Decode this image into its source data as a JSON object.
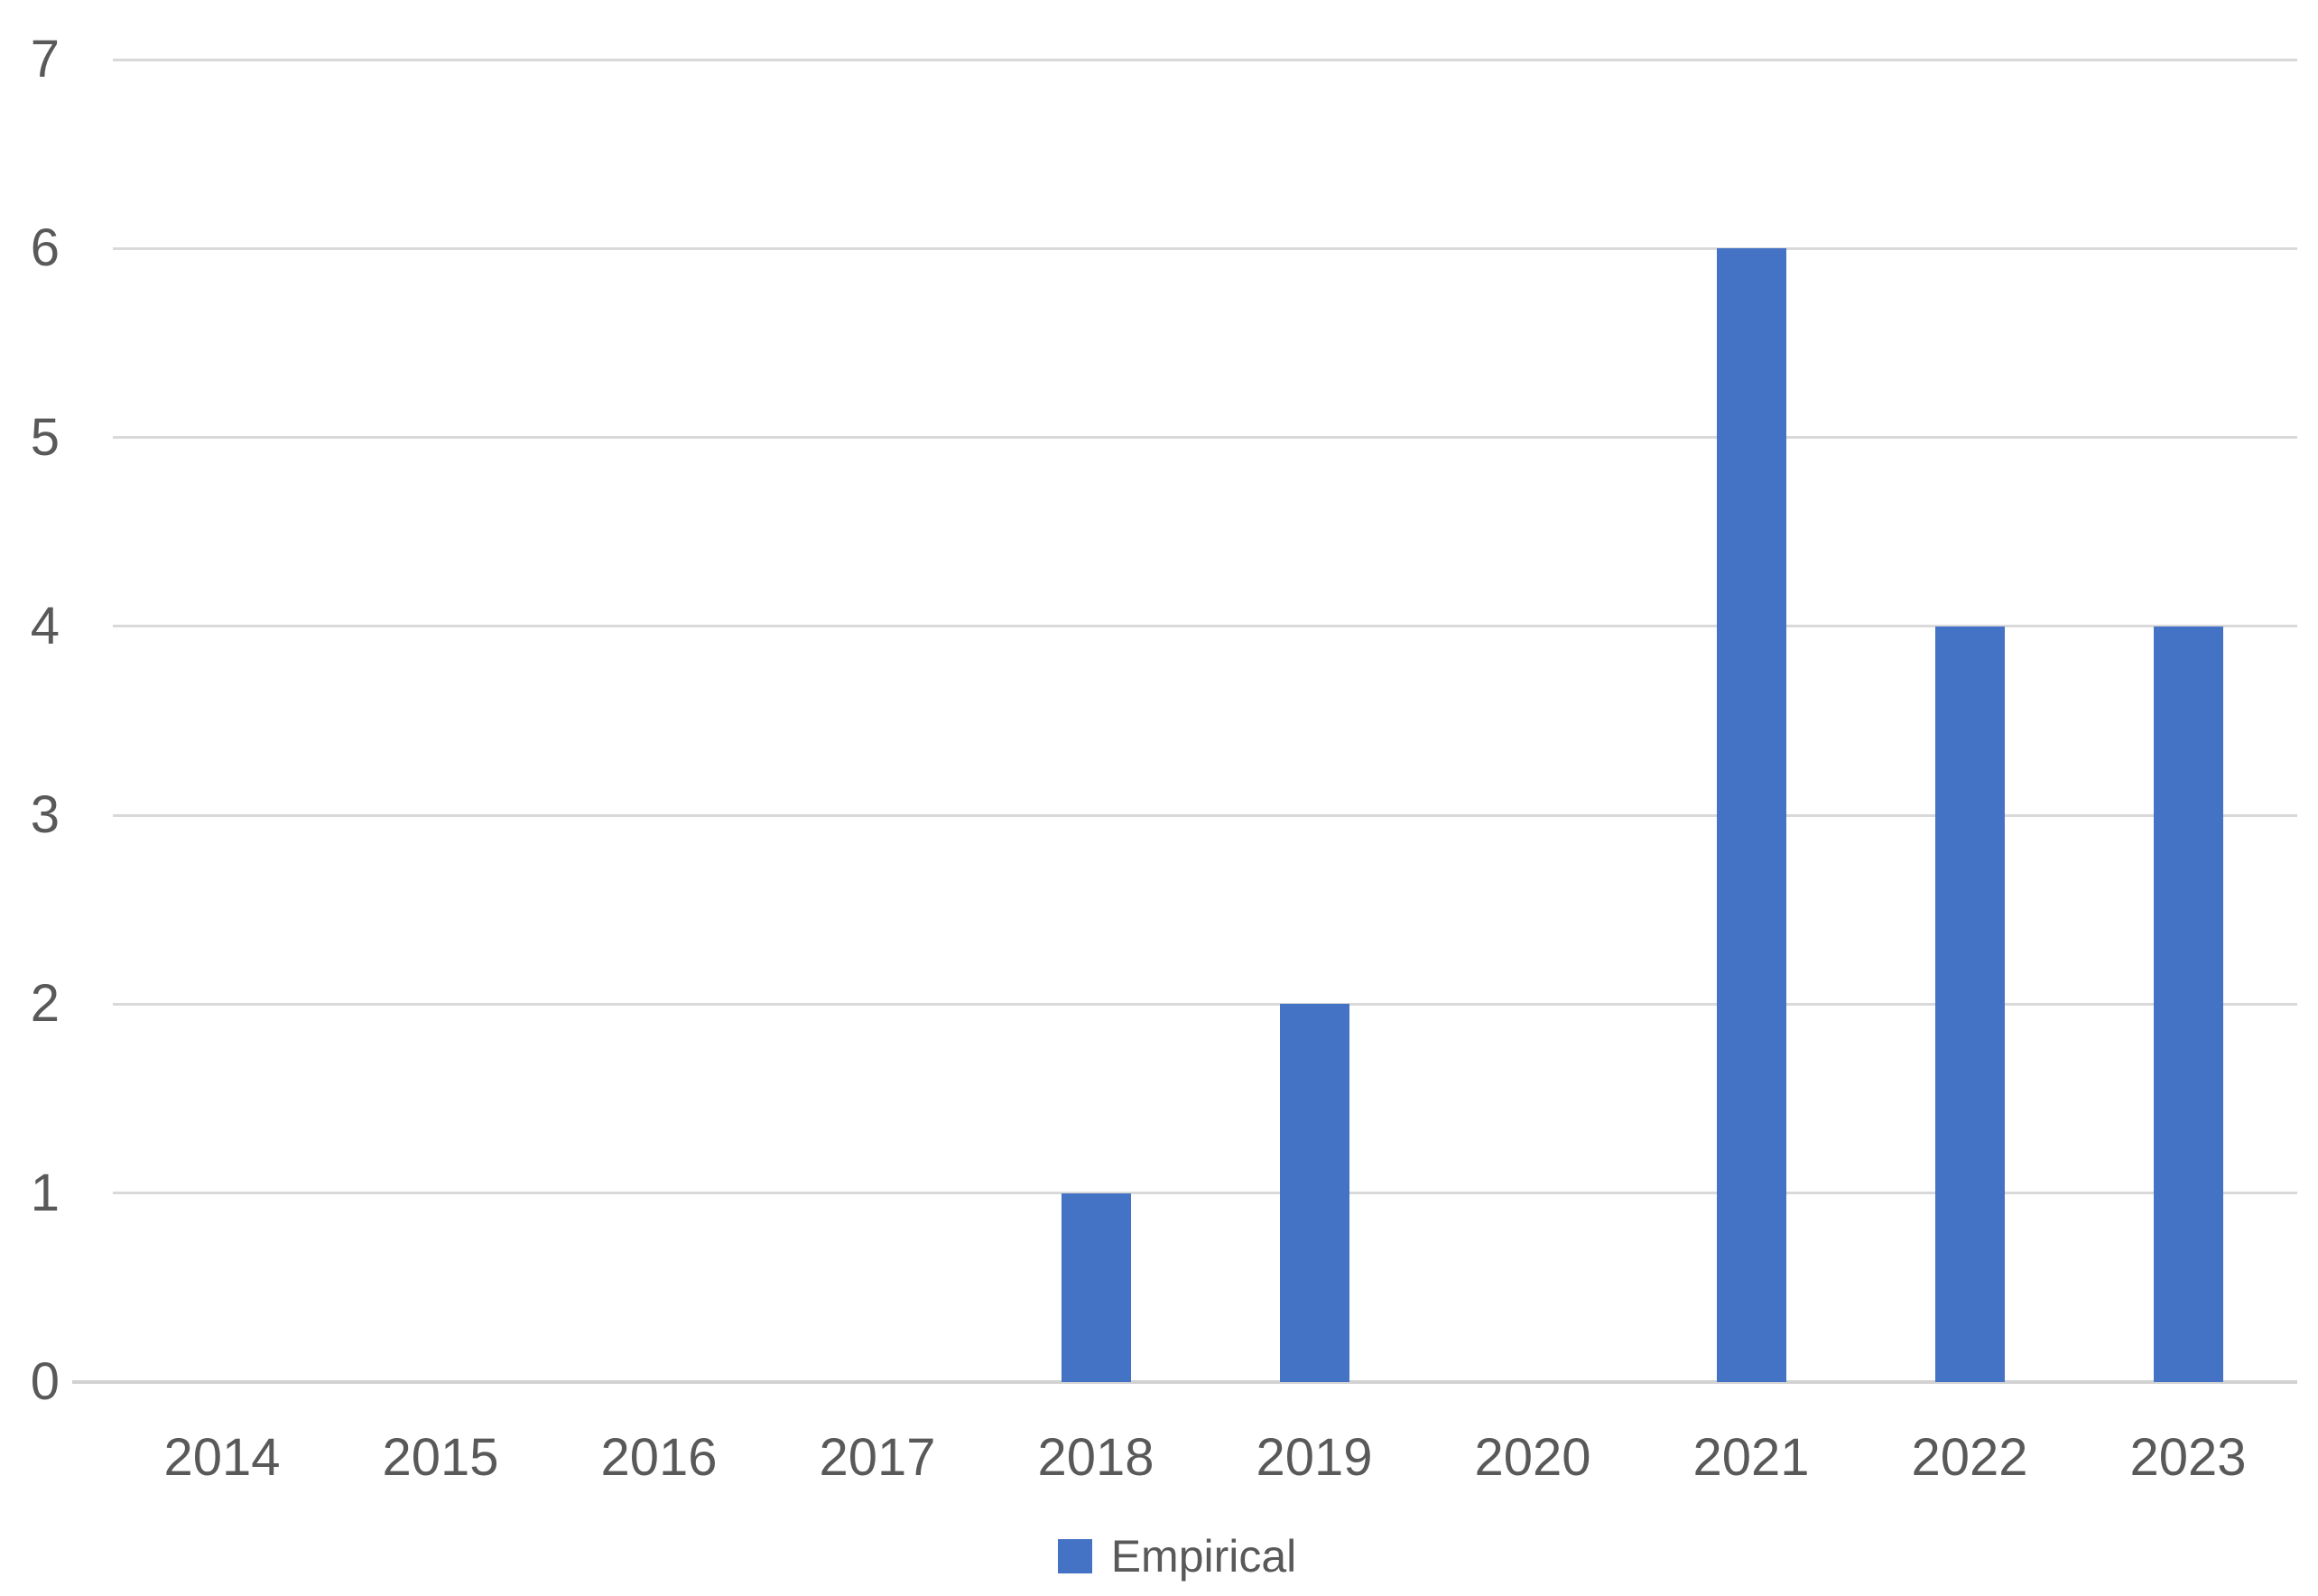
{
  "chart_data": {
    "type": "bar",
    "title": "",
    "categories": [
      "2014",
      "2015",
      "2016",
      "2017",
      "2018",
      "2019",
      "2020",
      "2021",
      "2022",
      "2023"
    ],
    "series": [
      {
        "name": "Empirical",
        "values": [
          0,
          0,
          0,
          0,
          1,
          2,
          0,
          6,
          4,
          4
        ],
        "color": "#4472C4"
      }
    ],
    "xlabel": "",
    "ylabel": "",
    "yticks": [
      0,
      1,
      2,
      3,
      4,
      5,
      6,
      7
    ],
    "ylim": [
      0,
      7
    ],
    "grid": "horizontal",
    "legend_position": "bottom-center"
  },
  "legend": {
    "swatch_color": "#4472C4",
    "label": "Empirical"
  },
  "colors": {
    "bar_fill": "#4472C4",
    "gridline": "#D9D9D9",
    "axis_line": "#D2D2D2",
    "tick_text": "#595959",
    "background": "#FFFFFF"
  }
}
